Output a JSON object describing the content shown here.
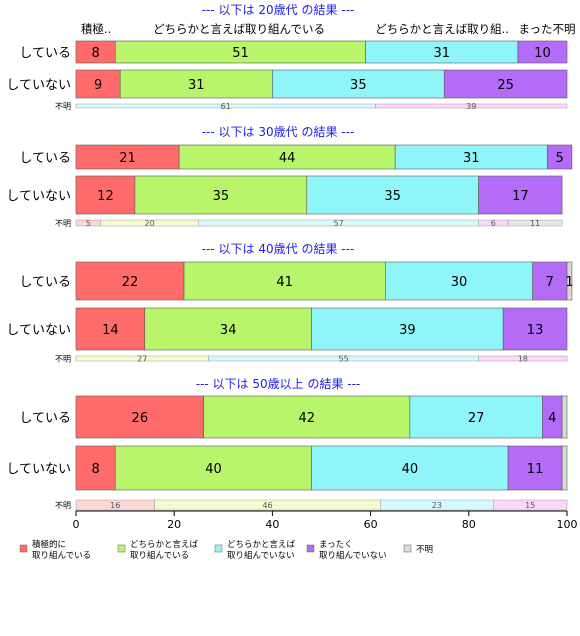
{
  "chart_data": {
    "type": "bar",
    "orientation": "horizontal",
    "stacked": true,
    "xlim": [
      0,
      100
    ],
    "x_ticks": [
      "0",
      "20",
      "40",
      "60",
      "80",
      "100"
    ],
    "category_labels": [
      "積極..",
      "どちらかと言えば取り組んでいる",
      "どちらかと言えば取り組..",
      "まった不明"
    ],
    "legend": [
      {
        "line1": "積極的に",
        "line2": "取り組んでいる",
        "color": "#ff6b6b"
      },
      {
        "line1": "どちらかと言えば",
        "line2": "取り組んでいる",
        "color": "#b8f56a"
      },
      {
        "line1": "どちらかと言えば",
        "line2": "取り組んでいない",
        "color": "#8ff5f8"
      },
      {
        "line1": "まったく",
        "line2": "取り組んでいない",
        "color": "#b36bf8"
      },
      {
        "line1": "不明",
        "line2": "",
        "color": "#d9d9d9"
      }
    ],
    "light_colors": [
      "#ffd6d6",
      "#f5fbcf",
      "#d6fafb",
      "#ffd6fb",
      "#e6e6e6"
    ],
    "panels": [
      {
        "title": "--- 以下は 20歳代 の結果 ---",
        "rows": [
          {
            "label": "している",
            "values": [
              8,
              51,
              31,
              10,
              0
            ],
            "labels": [
              "8",
              "51",
              "31",
              "10",
              ""
            ]
          },
          {
            "label": "していない",
            "values": [
              9,
              31,
              35,
              25,
              0
            ],
            "labels": [
              "9",
              "31",
              "35",
              "25",
              ""
            ]
          }
        ],
        "unknown": {
          "label": "不明",
          "values": [
            0,
            0,
            61,
            39,
            0
          ],
          "labels": [
            "",
            "",
            "61",
            "39",
            ""
          ]
        }
      },
      {
        "title": "--- 以下は 30歳代 の結果 ---",
        "rows": [
          {
            "label": "している",
            "values": [
              21,
              44,
              31,
              5,
              0
            ],
            "labels": [
              "21",
              "44",
              "31",
              "5",
              ""
            ]
          },
          {
            "label": "していない",
            "values": [
              12,
              35,
              35,
              17,
              0
            ],
            "labels": [
              "12",
              "35",
              "35",
              "17",
              ""
            ]
          }
        ],
        "unknown": {
          "label": "不明",
          "values": [
            5,
            20,
            57,
            6,
            11
          ],
          "labels": [
            "5",
            "20",
            "57",
            "6",
            "11"
          ]
        }
      },
      {
        "title": "--- 以下は 40歳代 の結果 ---",
        "rows": [
          {
            "label": "している",
            "values": [
              22,
              41,
              30,
              7,
              1
            ],
            "labels": [
              "22",
              "41",
              "30",
              "7",
              "1"
            ]
          },
          {
            "label": "していない",
            "values": [
              14,
              34,
              39,
              13,
              0
            ],
            "labels": [
              "14",
              "34",
              "39",
              "13",
              ""
            ]
          }
        ],
        "unknown": {
          "label": "不明",
          "values": [
            0,
            27,
            55,
            18,
            0
          ],
          "labels": [
            "",
            "27",
            "55",
            "18",
            ""
          ]
        }
      },
      {
        "title": "--- 以下は 50歳以上 の結果 ---",
        "rows": [
          {
            "label": "している",
            "values": [
              26,
              42,
              27,
              4,
              1
            ],
            "labels": [
              "26",
              "42",
              "27",
              "4",
              ""
            ]
          },
          {
            "label": "していない",
            "values": [
              8,
              40,
              40,
              11,
              1
            ],
            "labels": [
              "8",
              "40",
              "40",
              "11",
              ""
            ]
          }
        ],
        "unknown": {
          "label": "不明",
          "values": [
            16,
            46,
            23,
            15,
            0
          ],
          "labels": [
            "16",
            "46",
            "23",
            "15",
            ""
          ]
        }
      }
    ]
  }
}
